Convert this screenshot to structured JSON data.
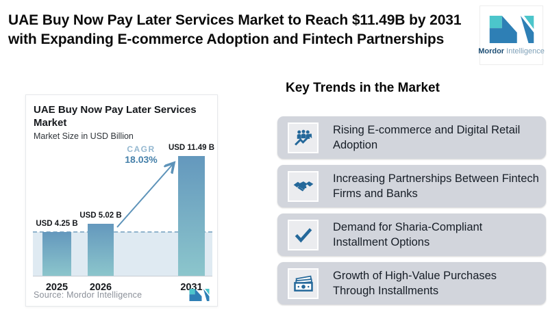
{
  "header": {
    "title_line1": "UAE Buy Now Pay Later Services Market to Reach $11.49B by 2031",
    "title_line2": "with Expanding E-commerce Adoption and Fintech Partnerships"
  },
  "logo": {
    "name_bold": "Mordor",
    "name_light": "Intelligence"
  },
  "chart_data": {
    "type": "bar",
    "title": "UAE Buy Now Pay Later Services Market",
    "subtitle": "Market Size in USD Billion",
    "categories": [
      "2025",
      "2026",
      "2031"
    ],
    "values": [
      4.25,
      5.02,
      11.49
    ],
    "value_labels": [
      "USD 4.25 B",
      "USD 5.02 B",
      "USD 11.49 B"
    ],
    "ylabel": "Market Size in USD Billion",
    "xlabel": "",
    "ylim": [
      0,
      12.4
    ],
    "grid": false,
    "cagr_label": "CAGR",
    "cagr_value": "18.03%",
    "source": "Source: Mordor Intelligence",
    "annotations": [
      "dashed horizontal reference line at 2025 value level with light shaded band below",
      "growth arrow from top of 2026 bar to 2031 bar label"
    ]
  },
  "trends": {
    "heading": "Key Trends in the Market",
    "items": [
      {
        "icon": "ecommerce-growth-icon",
        "label": "Rising E-commerce and Digital Retail Adoption"
      },
      {
        "icon": "handshake-icon",
        "label": "Increasing Partnerships Between Fintech Firms and Banks"
      },
      {
        "icon": "checkmark-icon",
        "label": "Demand for Sharia-Compliant Installment Options"
      },
      {
        "icon": "banknote-icon",
        "label": "Growth of High-Value Purchases Through Installments"
      }
    ]
  },
  "colors": {
    "bar_top": "#6498bd",
    "bar_bottom": "#8cc6cc",
    "accent_blue": "#24689a",
    "brand_blue": "#2e7fb5",
    "brand_teal": "#4cc5cb",
    "card_bg": "#d2d5dc",
    "dash_line": "#8fb3cc",
    "shade": "#dfeaf2",
    "cagr_text": "#447fa9"
  }
}
